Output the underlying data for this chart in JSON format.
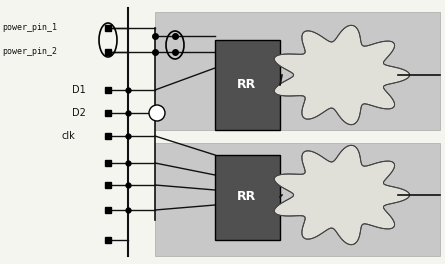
{
  "white_bg": "#f5f5f0",
  "panel_color": "#c8c8c8",
  "box_color": "#505050",
  "cloud_fill": "#e0e0d8",
  "cloud_edge": "#444444",
  "text_color": "#111111",
  "line_color": "#111111",
  "power_pin_1": "power_pin_1",
  "power_pin_2": "power_pin_2",
  "D1": "D1",
  "D2": "D2",
  "clk": "clk",
  "RR": "RR",
  "figsize": [
    4.45,
    2.64
  ],
  "dpi": 100
}
